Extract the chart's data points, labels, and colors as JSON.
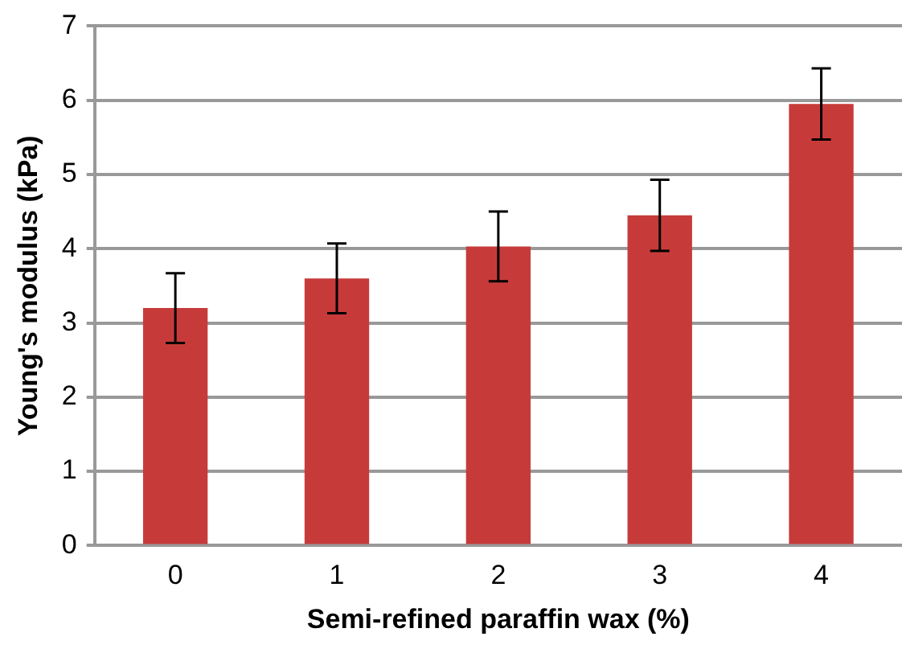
{
  "chart_data": {
    "type": "bar",
    "xlabel": "Semi-refined paraffin wax (%)",
    "ylabel": "Young's modulus (kPa)",
    "categories": [
      "0",
      "1",
      "2",
      "3",
      "4"
    ],
    "values": [
      3.2,
      3.6,
      4.03,
      4.45,
      5.95
    ],
    "errors": [
      0.47,
      0.47,
      0.47,
      0.48,
      0.48
    ],
    "color": "#c63b3a",
    "ylim": [
      0,
      7
    ],
    "yticks": [
      0,
      1,
      2,
      3,
      4,
      5,
      6,
      7
    ],
    "grid": "y",
    "legend": false
  }
}
